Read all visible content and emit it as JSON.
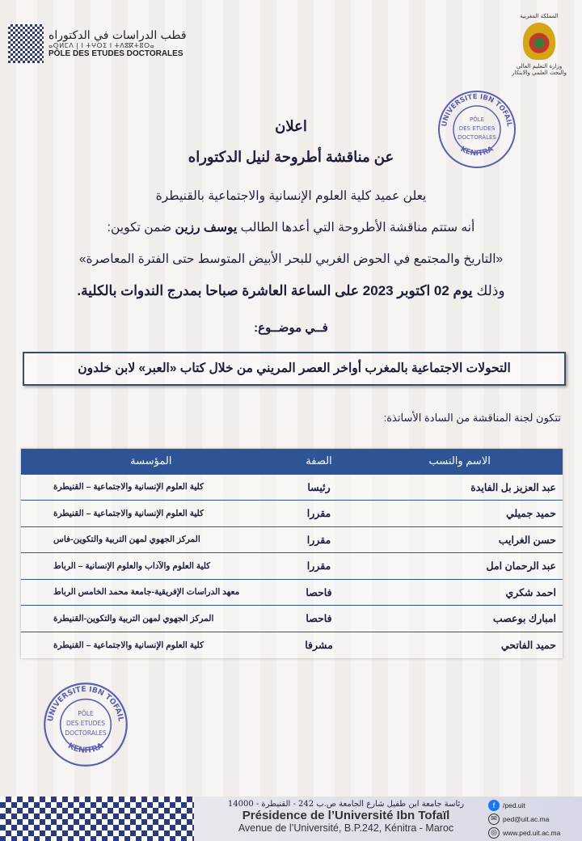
{
  "header": {
    "left_logo": {
      "arabic": "قطب الدراسات في الدكتوراه",
      "tifinagh": "ⴰⵙⵍⵎⴷ | ⵏ ⵜⵖⵔⵉ ⵏ ⵜⴷⵓⴽⵜⵓⵔⴰ",
      "french": "PÔLE DES ETUDES DOCTORALES"
    },
    "right_logo": {
      "kingdom": "المملكة المغربية",
      "ministry_1": "وزارة التعليم العالي",
      "ministry_2": "والبحث العلمي والابتكار"
    }
  },
  "announcement": {
    "title": "اعلان",
    "subtitle": "عن مناقشة أطروحة لنيل الدكتوراه",
    "line1": "يعلن عميد كلية العلوم الإنسانية والاجتماعية  بالقنيطرة",
    "line2_pre": "أنه ستتم مناقشة الأطروحة التي أعدها الطالب ",
    "student": "يوسف رزين",
    "line2_post": " ضمن تكوين:",
    "program": "«التاريخ والمجتمع في الحوض الغربي للبحر الأبيض المتوسط حتى الفترة المعاصرة»",
    "line4_pre": "وذلك ",
    "line4_bold": "يوم  02 اكتوبر 2023  على الساعة  العاشرة صباحا بمدرج  الندوات بالكلية.",
    "topic_label": "فــي موضــوع:",
    "topic": "التحولات الاجتماعية بالمغرب أواخر العصر المريني من خلال كتاب «العبر» لابن خلدون",
    "committee_intro": "تتكون لجنة المناقشة من السادة الأساتذة:"
  },
  "table": {
    "headers": [
      "الاسم والنسب",
      "الصفة",
      "المؤسسة"
    ],
    "rows": [
      [
        "عبد العزيز بل الفايدة",
        "رئيسا",
        "كلية العلوم الإنسانية والاجتماعية – القنيطرة"
      ],
      [
        "حميد جميلي",
        "مقررا",
        "كلية العلوم الإنسانية والاجتماعية – القنيطرة"
      ],
      [
        "حسن الغرايب",
        "مقررا",
        "المركز الجهوي لمهن التربية والتكوين-فاس"
      ],
      [
        "عبد الرحمان امل",
        "مقررا",
        "كلية العلوم والآداب والعلوم الإنسانية – الرباط"
      ],
      [
        "احمد شكري",
        "فاحصا",
        "معهد الدراسات الإفريقية-جامعة محمد الخامس الرباط"
      ],
      [
        "امبارك بوعصب",
        "فاحصا",
        "المركز الجهوي لمهن التربية والتكوين-القنيطرة"
      ],
      [
        "حميد الفاتحي",
        "مشرفا",
        "كلية العلوم الإنسانية والاجتماعية – القنيطرة"
      ]
    ]
  },
  "stamp": {
    "ring_top": "UNIVERSITE IBN TOFAIL",
    "center": [
      "PÔLE",
      "DES ETUDES",
      "DOCTORALES"
    ],
    "ring_bottom": "KENITRA",
    "color": "#5a60b0"
  },
  "footer": {
    "arabic": "رئاسة جامعة ابن طفيل شارع الجامعة ص.ب 242 - القنيطرة - 14000",
    "presidence": "Présidence de l’Université Ibn Tofaïl",
    "address": "Avenue de l’Université, B.P.242, Kénitra - Maroc",
    "facebook": "/ped.uit",
    "email": "ped@uit.ac.ma",
    "website": "www.ped.uit.ac.ma"
  },
  "colors": {
    "table_header": "#2f5496",
    "text": "#1d1d3a"
  }
}
